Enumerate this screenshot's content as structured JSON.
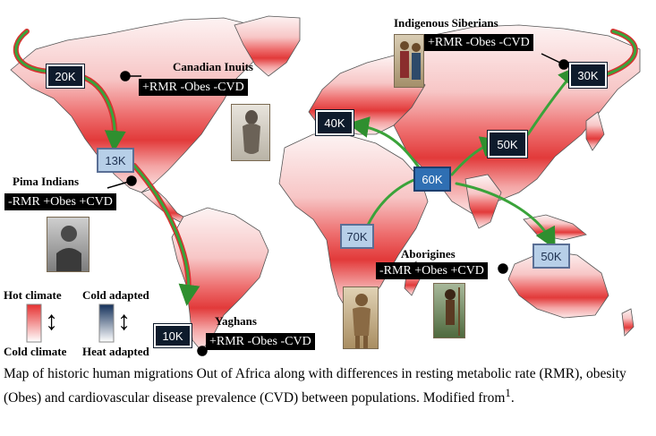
{
  "colors": {
    "hot": "#e63030",
    "cold_adapted": "#13305a",
    "arrow_green": "#3aa33a",
    "arrow_red": "#d83030"
  },
  "migration_nodes": [
    {
      "id": "n20k",
      "label": "20K"
    },
    {
      "id": "n13k",
      "label": "13K"
    },
    {
      "id": "n10k",
      "label": "10K"
    },
    {
      "id": "n40k",
      "label": "40K"
    },
    {
      "id": "n60k",
      "label": "60K"
    },
    {
      "id": "n70k",
      "label": "70K"
    },
    {
      "id": "n50k_asia",
      "label": "50K"
    },
    {
      "id": "n30k",
      "label": "30K"
    },
    {
      "id": "n50k_aus",
      "label": "50K"
    }
  ],
  "populations": {
    "canadian_inuits": {
      "title": "Canadian Inuits",
      "traits": "+RMR -Obes -CVD"
    },
    "indigenous_siberians": {
      "title": "Indigenous Siberians",
      "traits": "+RMR -Obes -CVD"
    },
    "pima_indians": {
      "title": "Pima Indians",
      "traits": "-RMR +Obes +CVD"
    },
    "aborigines": {
      "title": "Aborigines",
      "traits": "-RMR +Obes +CVD"
    },
    "yaghans": {
      "title": "Yaghans",
      "traits": "+RMR -Obes -CVD"
    }
  },
  "legend": {
    "hot_climate": "Hot climate",
    "cold_climate": "Cold climate",
    "cold_adapted": "Cold adapted",
    "heat_adapted": "Heat adapted",
    "arrow_glyph": "↕"
  },
  "caption": {
    "text": "Map of historic human migrations Out of Africa along with differences in resting metabolic rate (RMR), obesity (Obes) and cardiovascular disease prevalence (CVD) between populations. Modified from",
    "superscript": "1",
    "tail": "."
  }
}
